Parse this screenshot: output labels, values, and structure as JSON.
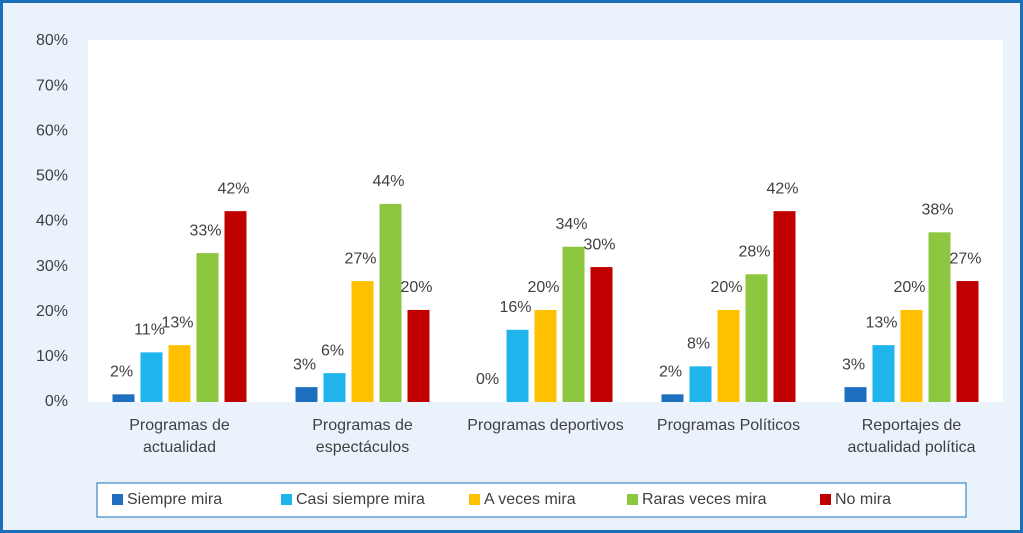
{
  "chart_data": {
    "type": "bar",
    "categories": [
      "Programas de\nactualidad",
      "Programas de\nespectáculos",
      "Programas deportivos",
      "Programas Políticos",
      "Reportajes de\nactualidad política"
    ],
    "series": [
      {
        "name": "Siempre mira",
        "color": "#1f6fc0",
        "values": [
          1.7,
          3.3,
          0,
          1.7,
          3.3
        ],
        "value_labels": [
          "2%",
          "3%",
          "0%",
          "2%",
          "3%"
        ]
      },
      {
        "name": "Casi siempre mira",
        "color": "#1fb4ec",
        "values": [
          11,
          6.4,
          16,
          7.9,
          12.6
        ],
        "value_labels": [
          "11%",
          "6%",
          "16%",
          "8%",
          "13%"
        ]
      },
      {
        "name": "A veces mira",
        "color": "#ffc000",
        "values": [
          12.6,
          26.8,
          20.4,
          20.4,
          20.4
        ],
        "value_labels": [
          "13%",
          "27%",
          "20%",
          "20%",
          "20%"
        ]
      },
      {
        "name": "Raras veces mira",
        "color": "#8dc63f",
        "values": [
          33,
          43.9,
          34.4,
          28.3,
          37.6
        ],
        "value_labels": [
          "33%",
          "44%",
          "34%",
          "28%",
          "38%"
        ]
      },
      {
        "name": "No mira",
        "color": "#c00000",
        "values": [
          42.3,
          20.4,
          29.9,
          42.3,
          26.8
        ],
        "value_labels": [
          "42%",
          "20%",
          "30%",
          "42%",
          "27%"
        ]
      }
    ],
    "ylim": [
      0,
      80
    ],
    "yticks": [
      {
        "value": 0,
        "label": "0%"
      },
      {
        "value": 10,
        "label": "10%"
      },
      {
        "value": 20,
        "label": "20%"
      },
      {
        "value": 30,
        "label": "30%"
      },
      {
        "value": 40,
        "label": "40%"
      },
      {
        "value": 50,
        "label": "50%"
      },
      {
        "value": 60,
        "label": "60%"
      },
      {
        "value": 70,
        "label": "70%"
      },
      {
        "value": 80,
        "label": "80%"
      }
    ],
    "grid": false,
    "legend": "bottom"
  }
}
